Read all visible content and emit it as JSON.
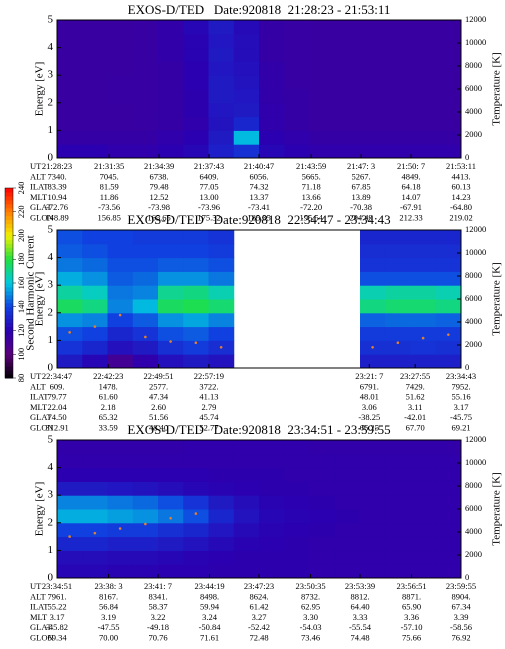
{
  "colorbar": {
    "label": "Second Harmonic Current",
    "lim": [
      80,
      240
    ],
    "ticks": [
      80,
      100,
      120,
      140,
      160,
      180,
      200,
      220,
      240
    ],
    "colors": [
      "#000000",
      "#5a007a",
      "#2a00b0",
      "#1040e0",
      "#00c8e0",
      "#20e040",
      "#f0f000",
      "#ff8000",
      "#ff0000"
    ]
  },
  "chart_data": [
    {
      "type": "heatmap",
      "title": "EXOS-D/TED   Date:920818  21:28:23 - 21:53:11",
      "ylabel": "Energy [eV]",
      "y2label": "Temperature [K]",
      "ylim": [
        0,
        5
      ],
      "yticks": [
        0,
        1,
        2,
        3,
        4,
        5
      ],
      "y2lim": [
        0,
        12000
      ],
      "y2ticks": [
        0,
        2000,
        4000,
        6000,
        8000,
        10000,
        12000
      ],
      "temperature_color": "#e08030",
      "temperature": [
        null,
        null,
        null,
        null,
        null,
        null,
        null,
        null,
        null,
        null,
        null,
        null,
        null,
        null,
        null,
        null
      ],
      "z": [
        [
          120,
          120,
          118,
          118,
          120,
          122,
          130,
          135,
          122,
          120,
          118,
          118,
          118,
          118,
          118,
          118
        ],
        [
          116,
          116,
          116,
          116,
          118,
          120,
          128,
          158,
          120,
          118,
          116,
          116,
          116,
          116,
          116,
          116
        ],
        [
          114,
          114,
          114,
          115,
          116,
          118,
          126,
          132,
          118,
          116,
          114,
          114,
          114,
          114,
          114,
          114
        ],
        [
          114,
          114,
          114,
          115,
          116,
          119,
          127,
          128,
          118,
          116,
          114,
          114,
          114,
          114,
          114,
          114
        ],
        [
          114,
          114,
          115,
          115,
          116,
          119,
          128,
          127,
          117,
          116,
          114,
          114,
          114,
          114,
          114,
          114
        ],
        [
          114,
          114,
          115,
          115,
          116,
          120,
          128,
          126,
          117,
          115,
          114,
          114,
          114,
          114,
          114,
          114
        ],
        [
          114,
          114,
          114,
          115,
          116,
          120,
          127,
          125,
          117,
          115,
          114,
          114,
          114,
          114,
          114,
          114
        ],
        [
          114,
          114,
          114,
          115,
          117,
          121,
          128,
          124,
          116,
          115,
          114,
          114,
          114,
          114,
          114,
          114
        ],
        [
          114,
          114,
          114,
          115,
          117,
          121,
          127,
          124,
          116,
          115,
          114,
          114,
          114,
          114,
          114,
          114
        ],
        [
          114,
          114,
          114,
          115,
          117,
          122,
          128,
          123,
          116,
          115,
          114,
          114,
          114,
          114,
          114,
          114
        ]
      ],
      "ephemeris": {
        "labels": [
          "UT",
          "ALT",
          "ILAT",
          "MLT",
          "GLAT",
          "GLON"
        ],
        "rows": [
          [
            "21:28:23",
            "21:31:35",
            "21:34:39",
            "21:37:43",
            "21:40:47",
            "21:43:59",
            "21:47: 3",
            "21:50: 7",
            "21:53:11"
          ],
          [
            "7340.",
            "7045.",
            "6738.",
            "6409.",
            "6056.",
            "5665.",
            "5267.",
            "4849.",
            "4413."
          ],
          [
            "83.39",
            "81.59",
            "79.48",
            "77.05",
            "74.32",
            "71.18",
            "67.85",
            "64.18",
            "60.13"
          ],
          [
            "10.94",
            "11.86",
            "12.52",
            "13.00",
            "13.37",
            "13.66",
            "13.89",
            "14.07",
            "14.23"
          ],
          [
            "-72.76",
            "-73.56",
            "-73.98",
            "-73.96",
            "-73.41",
            "-72.20",
            "-70.38",
            "-67.91",
            "-64.80"
          ],
          [
            "148.89",
            "156.85",
            "165.65",
            "175.32",
            "185.35",
            "195.54",
            "204.49",
            "212.33",
            "219.02"
          ]
        ]
      }
    },
    {
      "type": "heatmap",
      "title": "EXOS-D/TED   Date:920818  22:34:47 - 23:34:43",
      "ylabel": "Energy [eV]",
      "y2label": "Temperature [K]",
      "ylim": [
        0,
        5
      ],
      "yticks": [
        0,
        1,
        2,
        3,
        4,
        5
      ],
      "y2lim": [
        0,
        12000
      ],
      "y2ticks": [
        0,
        2000,
        4000,
        6000,
        8000,
        10000,
        12000
      ],
      "temperature_color": "#e08030",
      "temperature": [
        3100,
        3600,
        4600,
        2700,
        2300,
        2200,
        1800,
        null,
        null,
        null,
        null,
        null,
        1800,
        2200,
        2600,
        2900
      ],
      "z": [
        [
          128,
          122,
          110,
          118,
          125,
          128,
          126,
          null,
          null,
          null,
          null,
          null,
          130,
          130,
          130,
          130
        ],
        [
          136,
          132,
          125,
          128,
          135,
          138,
          134,
          null,
          null,
          null,
          null,
          null,
          135,
          135,
          136,
          135
        ],
        [
          142,
          140,
          132,
          136,
          142,
          144,
          140,
          null,
          null,
          null,
          null,
          null,
          138,
          138,
          138,
          138
        ],
        [
          152,
          150,
          140,
          144,
          152,
          155,
          150,
          null,
          null,
          null,
          null,
          null,
          145,
          146,
          146,
          145
        ],
        [
          176,
          172,
          150,
          158,
          176,
          178,
          174,
          null,
          null,
          null,
          null,
          null,
          172,
          174,
          174,
          172
        ],
        [
          168,
          164,
          148,
          150,
          170,
          172,
          166,
          null,
          null,
          null,
          null,
          null,
          166,
          168,
          168,
          166
        ],
        [
          156,
          152,
          144,
          146,
          152,
          152,
          148,
          null,
          null,
          null,
          null,
          null,
          142,
          142,
          142,
          142
        ],
        [
          148,
          146,
          142,
          142,
          144,
          144,
          142,
          null,
          null,
          null,
          null,
          null,
          136,
          136,
          136,
          136
        ],
        [
          144,
          142,
          140,
          140,
          140,
          140,
          138,
          null,
          null,
          null,
          null,
          null,
          134,
          134,
          134,
          134
        ],
        [
          142,
          140,
          140,
          138,
          138,
          138,
          136,
          null,
          null,
          null,
          null,
          null,
          132,
          132,
          132,
          132
        ]
      ],
      "ephemeris": {
        "labels": [
          "UT",
          "ALT",
          "ILAT",
          "MLT",
          "GLAT",
          "GLON"
        ],
        "rows": [
          [
            "22:34:47",
            "22:42:23",
            "22:49:51",
            "22:57:19",
            "23:21: 7",
            "23:27:55",
            "23:34:43"
          ],
          [
            "609.",
            "1478.",
            "2577.",
            "3722.",
            "6791.",
            "7429.",
            "7952."
          ],
          [
            "79.77",
            "61.60",
            "47.34",
            "41.13",
            "48.01",
            "51.62",
            "55.16"
          ],
          [
            "22.04",
            "2.18",
            "2.60",
            "2.79",
            "3.06",
            "3.11",
            "3.17"
          ],
          [
            "74.50",
            "65.32",
            "51.56",
            "45.74",
            "-38.25",
            "-42.01",
            "-45.75"
          ],
          [
            "312.91",
            "33.59",
            "48.40",
            "52.77",
            "66.25",
            "67.70",
            "69.21"
          ]
        ]
      }
    },
    {
      "type": "heatmap",
      "title": "EXOS-D/TED   Date:920818  23:34:51 - 23:59:55",
      "ylabel": "Energy [eV]",
      "y2label": "Temperature [K]",
      "ylim": [
        0,
        5
      ],
      "yticks": [
        0,
        1,
        2,
        3,
        4,
        5
      ],
      "y2lim": [
        0,
        12000
      ],
      "y2ticks": [
        0,
        2000,
        4000,
        6000,
        8000,
        10000,
        12000
      ],
      "temperature_color": "#e08030",
      "temperature": [
        3600,
        3900,
        4300,
        4700,
        5200,
        5600,
        null,
        null,
        null,
        null,
        null,
        null,
        null,
        null,
        null,
        null
      ],
      "z": [
        [
          122,
          122,
          121,
          121,
          120,
          120,
          119,
          119,
          119,
          119,
          118,
          118,
          118,
          118,
          118,
          118
        ],
        [
          124,
          124,
          123,
          123,
          122,
          121,
          120,
          119,
          119,
          119,
          118,
          118,
          118,
          118,
          118,
          118
        ],
        [
          132,
          132,
          130,
          130,
          128,
          126,
          123,
          121,
          120,
          119,
          118,
          118,
          118,
          118,
          118,
          118
        ],
        [
          140,
          140,
          138,
          138,
          135,
          132,
          127,
          123,
          121,
          120,
          119,
          118,
          118,
          118,
          118,
          118
        ],
        [
          156,
          156,
          154,
          152,
          148,
          142,
          132,
          126,
          122,
          121,
          120,
          119,
          118,
          118,
          118,
          118
        ],
        [
          150,
          150,
          148,
          146,
          142,
          136,
          128,
          124,
          121,
          120,
          119,
          118,
          118,
          118,
          118,
          118
        ],
        [
          128,
          128,
          127,
          126,
          124,
          122,
          121,
          120,
          119,
          119,
          118,
          118,
          118,
          118,
          118,
          118
        ],
        [
          120,
          120,
          120,
          120,
          120,
          120,
          119,
          119,
          119,
          118,
          118,
          118,
          118,
          118,
          118,
          118
        ],
        [
          118,
          118,
          118,
          118,
          118,
          118,
          118,
          118,
          118,
          118,
          118,
          118,
          118,
          118,
          118,
          118
        ],
        [
          117,
          117,
          117,
          117,
          117,
          118,
          118,
          118,
          118,
          118,
          117,
          117,
          117,
          117,
          117,
          117
        ]
      ],
      "ephemeris": {
        "labels": [
          "UT",
          "ALT",
          "ILAT",
          "MLT",
          "GLAT",
          "GLON"
        ],
        "rows": [
          [
            "23:34:51",
            "23:38: 3",
            "23:41: 7",
            "23:44:19",
            "23:47:23",
            "23:50:35",
            "23:53:39",
            "23:56:51",
            "23:59:55"
          ],
          [
            "7961.",
            "8167.",
            "8341.",
            "8498.",
            "8624.",
            "8732.",
            "8812.",
            "8871.",
            "8904."
          ],
          [
            "55.22",
            "56.84",
            "58.37",
            "59.94",
            "61.42",
            "62.95",
            "64.40",
            "65.90",
            "67.34"
          ],
          [
            "3.17",
            "3.19",
            "3.22",
            "3.24",
            "3.27",
            "3.30",
            "3.33",
            "3.36",
            "3.39"
          ],
          [
            "-45.82",
            "-47.55",
            "-49.18",
            "-50.84",
            "-52.42",
            "-54.03",
            "-55.54",
            "-57.10",
            "-58.56"
          ],
          [
            "69.34",
            "70.00",
            "70.76",
            "71.61",
            "72.48",
            "73.46",
            "74.48",
            "75.66",
            "76.92"
          ]
        ]
      }
    }
  ]
}
